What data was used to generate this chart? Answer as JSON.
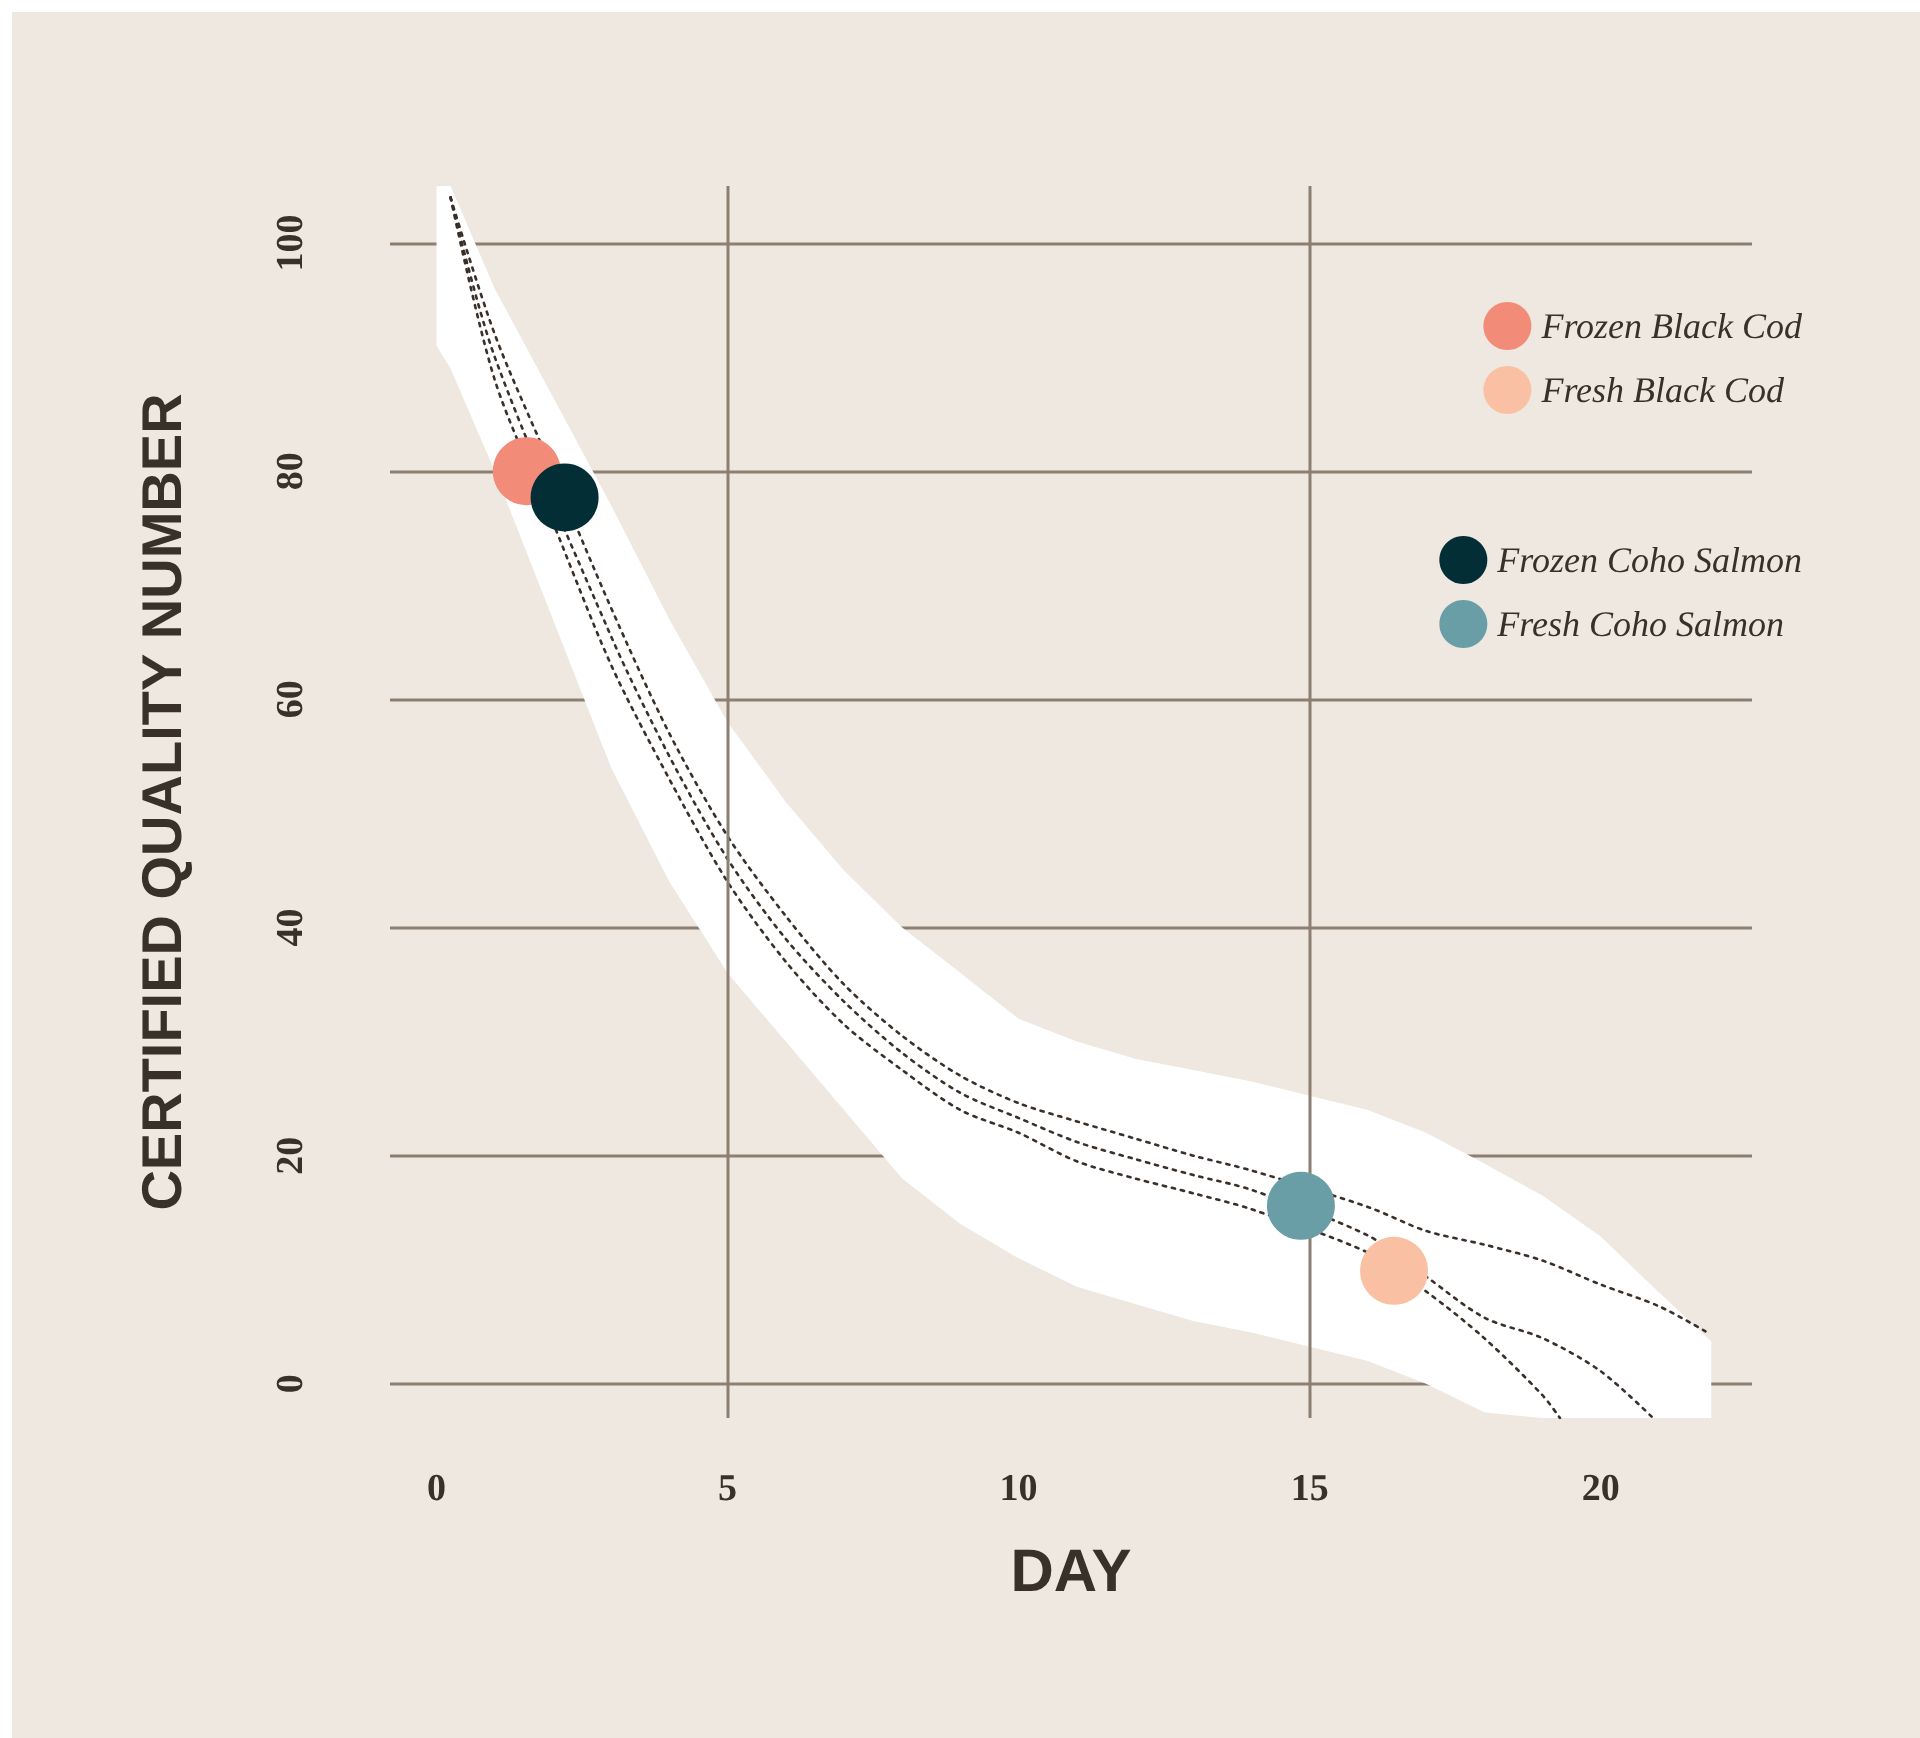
{
  "chart_data": {
    "type": "line",
    "xlabel": "DAY",
    "ylabel": "CERTIFIED QUALITY NUMBER",
    "xlim": [
      -0.8,
      22.6
    ],
    "xticks": [
      0,
      5,
      10,
      15,
      20
    ],
    "ylim": [
      -3,
      105
    ],
    "yticks": [
      0,
      20,
      40,
      60,
      80,
      100
    ],
    "grid": "y",
    "legend": "top right",
    "marker": "circle",
    "line_style": "dotted",
    "ref_lines": [
      {
        "axis": "x",
        "value": 5,
        "color": "#8c7f72"
      },
      {
        "axis": "x",
        "value": 15,
        "color": "#8c7f72"
      }
    ],
    "series": [
      {
        "marker": "none",
        "color": "#3a302a",
        "x": [
          0.24,
          1,
          2,
          3,
          4,
          5,
          6,
          7,
          8,
          9,
          10,
          11,
          12,
          13,
          14,
          16,
          17,
          18,
          19,
          20,
          21,
          21.8
        ],
        "values": [
          104,
          92,
          80,
          68,
          57,
          48,
          41,
          35,
          30.5,
          27,
          24.6,
          23,
          21.5,
          20,
          18.7,
          15.5,
          13.4,
          12.2,
          10.8,
          8.7,
          6.8,
          4.6
        ]
      },
      {
        "marker": "none",
        "color": "#3a302a",
        "x": [
          0,
          0.24,
          1,
          3,
          4,
          5,
          6,
          7,
          8,
          9,
          10,
          11,
          12,
          13,
          14,
          16,
          17,
          18,
          19,
          20,
          20.9,
          21.9
        ],
        "values": [
          null,
          104,
          90,
          65.5,
          55,
          46,
          39,
          33.5,
          29,
          25.5,
          23.3,
          21.2,
          19.7,
          18.3,
          17,
          13,
          9.4,
          5.8,
          4,
          1.1,
          -3,
          null
        ],
        "upper": [
          105,
          105,
          96,
          77,
          67,
          58,
          51,
          45,
          40,
          36,
          32,
          30,
          28.5,
          27.5,
          26.5,
          24,
          22,
          19.3,
          16.5,
          12.9,
          8.5,
          3.7
        ],
        "lower": [
          91,
          89,
          80,
          54,
          44,
          36,
          30,
          24,
          18,
          14,
          11,
          8.5,
          7,
          5.5,
          4.5,
          2,
          0,
          -2.5,
          -3,
          -3,
          -3,
          -3
        ]
      },
      {
        "marker": "none",
        "color": "#3a302a",
        "x": [
          0.24,
          1,
          2,
          3,
          4,
          5,
          6,
          7,
          8,
          9,
          10,
          11,
          12,
          13,
          14,
          16,
          17,
          18,
          19,
          19.3
        ],
        "values": [
          104,
          88,
          75.5,
          63,
          53,
          44,
          37,
          31.5,
          27.5,
          24,
          22,
          19.5,
          18,
          16.7,
          15.3,
          11.5,
          8.1,
          4,
          -1,
          -3
        ]
      },
      {
        "type": "scatter",
        "name": "Frozen Black Cod",
        "color": "#f28b78",
        "x": [
          1.55
        ],
        "values": [
          80
        ]
      },
      {
        "type": "scatter",
        "name": "Fresh Black Cod",
        "color": "#f9c0a3",
        "x": [
          16.45
        ],
        "values": [
          9.9
        ]
      },
      {
        "type": "scatter",
        "name": "Frozen Coho Salmon",
        "color": "#032e35",
        "x": [
          2.2
        ],
        "values": [
          77.7
        ]
      },
      {
        "type": "scatter",
        "name": "Fresh Coho Salmon",
        "color": "#6a9ea6",
        "x": [
          14.85
        ],
        "values": [
          15.6
        ]
      }
    ]
  }
}
